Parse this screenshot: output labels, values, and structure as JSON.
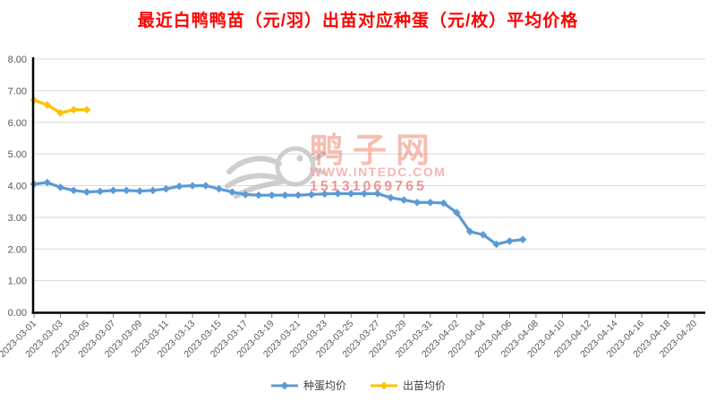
{
  "chart_data": {
    "type": "line",
    "title": "最近白鸭鸭苗（元/羽）出苗对应种蛋（元/枚）平均价格",
    "title_color": "#ff0000",
    "categories": [
      "2023-03-01",
      "2023-03-02",
      "2023-03-03",
      "2023-03-04",
      "2023-03-05",
      "2023-03-06",
      "2023-03-07",
      "2023-03-08",
      "2023-03-09",
      "2023-03-10",
      "2023-03-11",
      "2023-03-12",
      "2023-03-13",
      "2023-03-14",
      "2023-03-15",
      "2023-03-16",
      "2023-03-17",
      "2023-03-18",
      "2023-03-19",
      "2023-03-20",
      "2023-03-21",
      "2023-03-22",
      "2023-03-23",
      "2023-03-24",
      "2023-03-25",
      "2023-03-26",
      "2023-03-27",
      "2023-03-28",
      "2023-03-29",
      "2023-03-30",
      "2023-03-31",
      "2023-04-01",
      "2023-04-02",
      "2023-04-03",
      "2023-04-04",
      "2023-04-05",
      "2023-04-06",
      "2023-04-07",
      "2023-04-08",
      "2023-04-09",
      "2023-04-10",
      "2023-04-11",
      "2023-04-12",
      "2023-04-13",
      "2023-04-14",
      "2023-04-15",
      "2023-04-16",
      "2023-04-17",
      "2023-04-18",
      "2023-04-19",
      "2023-04-20"
    ],
    "x_label_every": 2,
    "ylim": [
      0,
      8
    ],
    "y_tick_step": 1,
    "y_tick_labels": [
      "0.00",
      "1.00",
      "2.00",
      "3.00",
      "4.00",
      "5.00",
      "6.00",
      "7.00",
      "8.00"
    ],
    "grid": true,
    "legend_position": "bottom",
    "series": [
      {
        "name": "种蛋均价",
        "color": "#5B9BD5",
        "marker": "diamond",
        "values": [
          4.05,
          4.1,
          3.95,
          3.85,
          3.8,
          3.82,
          3.85,
          3.85,
          3.83,
          3.85,
          3.9,
          3.98,
          4.0,
          4.0,
          3.9,
          3.8,
          3.72,
          3.7,
          3.7,
          3.7,
          3.7,
          3.72,
          3.74,
          3.75,
          3.75,
          3.75,
          3.75,
          3.62,
          3.55,
          3.47,
          3.47,
          3.45,
          3.15,
          2.55,
          2.45,
          2.15,
          2.25,
          2.3
        ]
      },
      {
        "name": "出苗均价",
        "color": "#FFC000",
        "marker": "diamond",
        "values": [
          6.7,
          6.55,
          6.3,
          6.4,
          6.4
        ]
      }
    ]
  },
  "watermark": {
    "site_name": "鸭子网",
    "url": "WWW.INTEDC.COM",
    "phone": "15131069765"
  },
  "colors": {
    "grid": "#D9D9D9",
    "axis": "#000000",
    "tick_label": "#595959",
    "watermark_site": "rgba(238,108,82,0.45)",
    "watermark_url": "rgba(246,168,168,0.85)",
    "watermark_phone": "rgba(238,130,130,0.85)",
    "logo_gray": "#C6C6C6"
  }
}
